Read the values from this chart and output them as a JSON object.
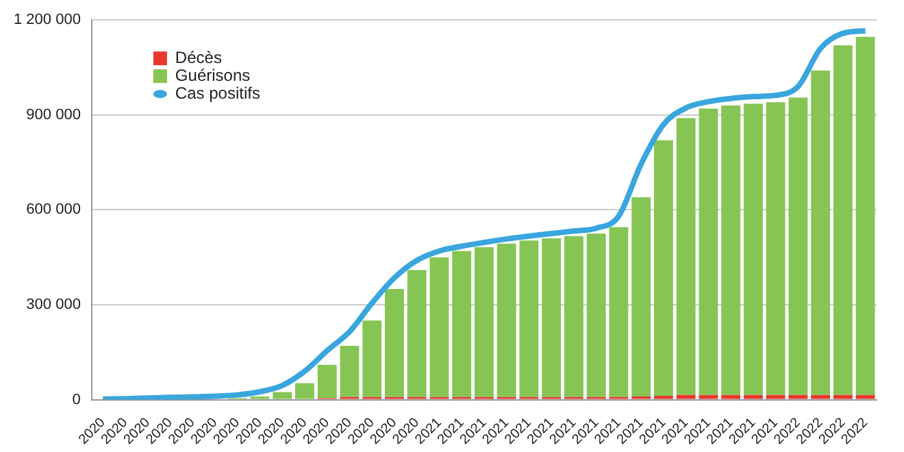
{
  "chart_data": {
    "type": "bar",
    "stacked": true,
    "categories": [
      "2020",
      "2020",
      "2020",
      "2020",
      "2020",
      "2020",
      "2020",
      "2020",
      "2020",
      "2020",
      "2020",
      "2020",
      "2020",
      "2020",
      "2020",
      "2021",
      "2021",
      "2021",
      "2021",
      "2021",
      "2021",
      "2021",
      "2021",
      "2021",
      "2021",
      "2021",
      "2021",
      "2021",
      "2021",
      "2021",
      "2021",
      "2022",
      "2022",
      "2022",
      "2022"
    ],
    "series": [
      {
        "name": "Décès",
        "color": "#e8382c",
        "values": [
          0,
          0,
          0,
          0,
          0,
          0,
          0,
          0,
          null,
          null,
          5000,
          8000,
          8000,
          8000,
          8000,
          8000,
          8000,
          8000,
          8000,
          8000,
          8000,
          8000,
          8000,
          8000,
          10000,
          12000,
          15000,
          15000,
          15000,
          15000,
          15000,
          15000,
          15000,
          15000,
          15000
        ]
      },
      {
        "name": "Guérisons",
        "color": "#86c553",
        "values": [
          0,
          0,
          0,
          0,
          0,
          null,
          5000,
          10000,
          24000,
          52000,
          105000,
          162000,
          242000,
          342000,
          402000,
          442000,
          462000,
          474000,
          485000,
          495000,
          502000,
          509000,
          517000,
          537000,
          630000,
          808000,
          875000,
          905000,
          915000,
          920000,
          925000,
          940000,
          1025000,
          1105000,
          1132000
        ]
      },
      {
        "name": "Cas positifs",
        "type": "line",
        "color": "#3aa6dd",
        "values": [
          2000,
          3000,
          5000,
          7000,
          9000,
          11000,
          15000,
          25000,
          45000,
          90000,
          155000,
          215000,
          305000,
          385000,
          440000,
          470000,
          485000,
          497000,
          508000,
          517000,
          525000,
          533000,
          542000,
          580000,
          745000,
          870000,
          922000,
          942000,
          952000,
          958000,
          962000,
          990000,
          1110000,
          1158000,
          1166000
        ]
      }
    ],
    "ylim": [
      0,
      1200000
    ],
    "yticks": [
      {
        "value": 0,
        "label": "0"
      },
      {
        "value": 300000,
        "label": "300 000"
      },
      {
        "value": 600000,
        "label": "600 000"
      },
      {
        "value": 900000,
        "label": "900 000"
      },
      {
        "value": 1200000,
        "label": "1 200 000"
      }
    ],
    "grid": "y",
    "legend": "top left",
    "marker": "none"
  }
}
